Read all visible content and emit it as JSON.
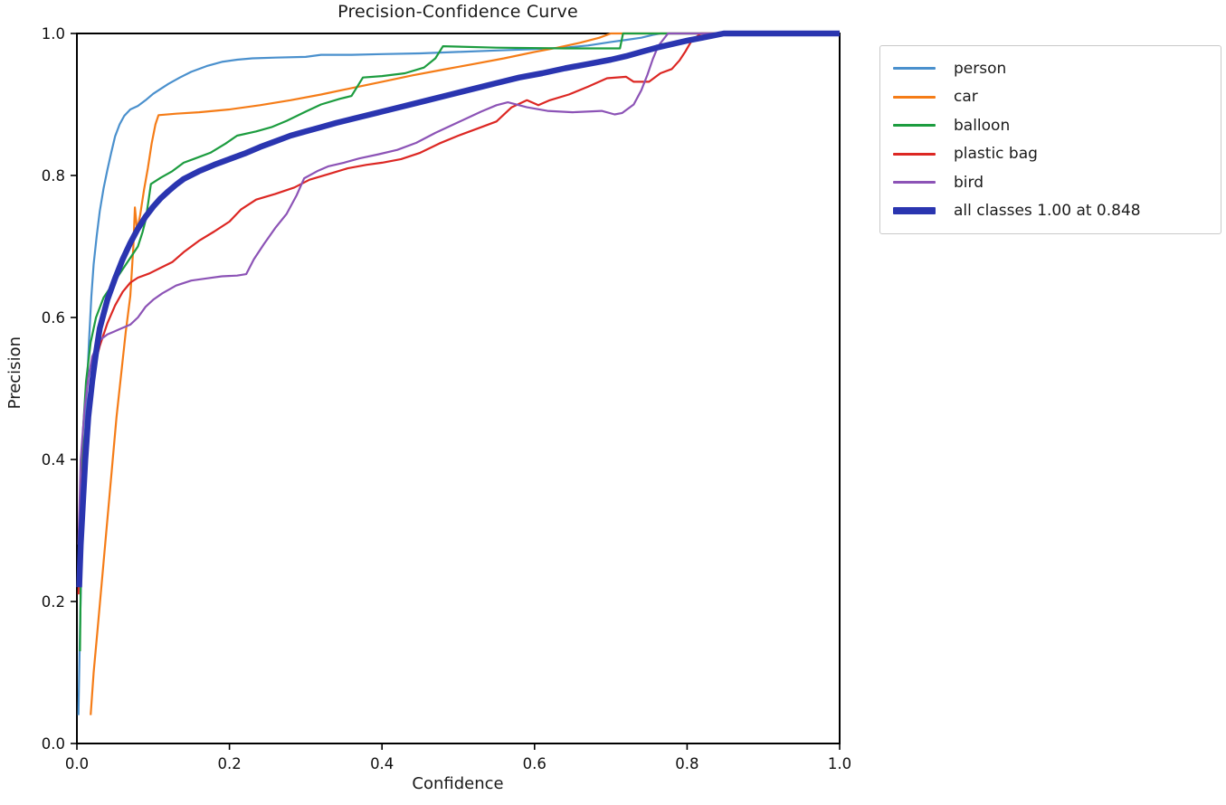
{
  "chart_data": {
    "type": "line",
    "title": "Precision-Confidence Curve",
    "xlabel": "Confidence",
    "ylabel": "Precision",
    "xlim": [
      0.0,
      1.0
    ],
    "ylim": [
      0.0,
      1.0
    ],
    "xticks": [
      "0.0",
      "0.2",
      "0.4",
      "0.6",
      "0.8",
      "1.0"
    ],
    "yticks": [
      "0.0",
      "0.2",
      "0.4",
      "0.6",
      "0.8",
      "1.0"
    ],
    "grid": false,
    "legend_position": "outside upper right",
    "axis_color": "#000000",
    "tick_label_color": "#111111",
    "series": [
      {
        "name": "person",
        "color": "#4a90cd",
        "width": 2.2,
        "points": [
          [
            0.002,
            0.04
          ],
          [
            0.004,
            0.16
          ],
          [
            0.006,
            0.26
          ],
          [
            0.008,
            0.34
          ],
          [
            0.01,
            0.42
          ],
          [
            0.013,
            0.5
          ],
          [
            0.016,
            0.57
          ],
          [
            0.019,
            0.63
          ],
          [
            0.022,
            0.675
          ],
          [
            0.026,
            0.715
          ],
          [
            0.03,
            0.75
          ],
          [
            0.035,
            0.782
          ],
          [
            0.04,
            0.808
          ],
          [
            0.045,
            0.832
          ],
          [
            0.05,
            0.855
          ],
          [
            0.056,
            0.872
          ],
          [
            0.062,
            0.884
          ],
          [
            0.07,
            0.893
          ],
          [
            0.08,
            0.898
          ],
          [
            0.09,
            0.906
          ],
          [
            0.1,
            0.915
          ],
          [
            0.11,
            0.922
          ],
          [
            0.12,
            0.929
          ],
          [
            0.135,
            0.938
          ],
          [
            0.15,
            0.946
          ],
          [
            0.17,
            0.954
          ],
          [
            0.19,
            0.96
          ],
          [
            0.21,
            0.963
          ],
          [
            0.23,
            0.965
          ],
          [
            0.26,
            0.966
          ],
          [
            0.3,
            0.967
          ],
          [
            0.32,
            0.97
          ],
          [
            0.36,
            0.97
          ],
          [
            0.4,
            0.971
          ],
          [
            0.45,
            0.972
          ],
          [
            0.5,
            0.974
          ],
          [
            0.55,
            0.976
          ],
          [
            0.6,
            0.978
          ],
          [
            0.64,
            0.98
          ],
          [
            0.67,
            0.983
          ],
          [
            0.7,
            0.988
          ],
          [
            0.72,
            0.991
          ],
          [
            0.74,
            0.994
          ],
          [
            0.755,
            0.998
          ],
          [
            0.765,
            1.0
          ],
          [
            1.0,
            1.0
          ]
        ]
      },
      {
        "name": "car",
        "color": "#f57c17",
        "width": 2.2,
        "points": [
          [
            0.018,
            0.04
          ],
          [
            0.022,
            0.1
          ],
          [
            0.027,
            0.16
          ],
          [
            0.032,
            0.22
          ],
          [
            0.037,
            0.28
          ],
          [
            0.042,
            0.34
          ],
          [
            0.047,
            0.4
          ],
          [
            0.052,
            0.46
          ],
          [
            0.058,
            0.52
          ],
          [
            0.064,
            0.58
          ],
          [
            0.07,
            0.63
          ],
          [
            0.074,
            0.7
          ],
          [
            0.076,
            0.755
          ],
          [
            0.079,
            0.722
          ],
          [
            0.083,
            0.745
          ],
          [
            0.088,
            0.78
          ],
          [
            0.093,
            0.81
          ],
          [
            0.098,
            0.845
          ],
          [
            0.103,
            0.872
          ],
          [
            0.107,
            0.885
          ],
          [
            0.13,
            0.887
          ],
          [
            0.16,
            0.889
          ],
          [
            0.2,
            0.893
          ],
          [
            0.24,
            0.899
          ],
          [
            0.28,
            0.906
          ],
          [
            0.32,
            0.914
          ],
          [
            0.36,
            0.923
          ],
          [
            0.4,
            0.932
          ],
          [
            0.44,
            0.941
          ],
          [
            0.48,
            0.949
          ],
          [
            0.52,
            0.957
          ],
          [
            0.56,
            0.965
          ],
          [
            0.6,
            0.974
          ],
          [
            0.63,
            0.98
          ],
          [
            0.66,
            0.987
          ],
          [
            0.685,
            0.994
          ],
          [
            0.7,
            1.0
          ],
          [
            1.0,
            1.0
          ]
        ]
      },
      {
        "name": "balloon",
        "color": "#1c9c3f",
        "width": 2.2,
        "points": [
          [
            0.004,
            0.13
          ],
          [
            0.006,
            0.33
          ],
          [
            0.008,
            0.44
          ],
          [
            0.012,
            0.51
          ],
          [
            0.018,
            0.565
          ],
          [
            0.025,
            0.6
          ],
          [
            0.035,
            0.628
          ],
          [
            0.05,
            0.652
          ],
          [
            0.06,
            0.668
          ],
          [
            0.07,
            0.684
          ],
          [
            0.08,
            0.7
          ],
          [
            0.086,
            0.72
          ],
          [
            0.09,
            0.737
          ],
          [
            0.094,
            0.765
          ],
          [
            0.097,
            0.788
          ],
          [
            0.11,
            0.797
          ],
          [
            0.125,
            0.806
          ],
          [
            0.14,
            0.818
          ],
          [
            0.155,
            0.824
          ],
          [
            0.175,
            0.832
          ],
          [
            0.195,
            0.845
          ],
          [
            0.21,
            0.856
          ],
          [
            0.235,
            0.862
          ],
          [
            0.255,
            0.868
          ],
          [
            0.275,
            0.877
          ],
          [
            0.3,
            0.89
          ],
          [
            0.32,
            0.9
          ],
          [
            0.345,
            0.908
          ],
          [
            0.36,
            0.912
          ],
          [
            0.375,
            0.938
          ],
          [
            0.4,
            0.94
          ],
          [
            0.43,
            0.944
          ],
          [
            0.455,
            0.952
          ],
          [
            0.47,
            0.965
          ],
          [
            0.48,
            0.982
          ],
          [
            0.55,
            0.98
          ],
          [
            0.64,
            0.979
          ],
          [
            0.712,
            0.979
          ],
          [
            0.716,
            1.0
          ],
          [
            1.0,
            1.0
          ]
        ]
      },
      {
        "name": "plastic bag",
        "color": "#dc2723",
        "width": 2.2,
        "points": [
          [
            0.002,
            0.21
          ],
          [
            0.004,
            0.3
          ],
          [
            0.006,
            0.36
          ],
          [
            0.009,
            0.41
          ],
          [
            0.013,
            0.455
          ],
          [
            0.018,
            0.5
          ],
          [
            0.024,
            0.535
          ],
          [
            0.03,
            0.56
          ],
          [
            0.04,
            0.592
          ],
          [
            0.05,
            0.617
          ],
          [
            0.06,
            0.636
          ],
          [
            0.07,
            0.649
          ],
          [
            0.08,
            0.656
          ],
          [
            0.095,
            0.662
          ],
          [
            0.11,
            0.67
          ],
          [
            0.125,
            0.678
          ],
          [
            0.14,
            0.692
          ],
          [
            0.16,
            0.708
          ],
          [
            0.18,
            0.721
          ],
          [
            0.2,
            0.735
          ],
          [
            0.215,
            0.752
          ],
          [
            0.235,
            0.766
          ],
          [
            0.26,
            0.774
          ],
          [
            0.285,
            0.783
          ],
          [
            0.305,
            0.794
          ],
          [
            0.33,
            0.802
          ],
          [
            0.355,
            0.81
          ],
          [
            0.38,
            0.815
          ],
          [
            0.4,
            0.818
          ],
          [
            0.425,
            0.823
          ],
          [
            0.45,
            0.832
          ],
          [
            0.475,
            0.845
          ],
          [
            0.5,
            0.856
          ],
          [
            0.525,
            0.866
          ],
          [
            0.55,
            0.876
          ],
          [
            0.57,
            0.896
          ],
          [
            0.59,
            0.906
          ],
          [
            0.605,
            0.899
          ],
          [
            0.62,
            0.906
          ],
          [
            0.645,
            0.914
          ],
          [
            0.67,
            0.925
          ],
          [
            0.695,
            0.937
          ],
          [
            0.72,
            0.939
          ],
          [
            0.73,
            0.932
          ],
          [
            0.75,
            0.932
          ],
          [
            0.765,
            0.944
          ],
          [
            0.78,
            0.95
          ],
          [
            0.79,
            0.962
          ],
          [
            0.798,
            0.975
          ],
          [
            0.806,
            0.99
          ],
          [
            0.818,
            1.0
          ],
          [
            1.0,
            1.0
          ]
        ]
      },
      {
        "name": "bird",
        "color": "#8c53b6",
        "width": 2.2,
        "points": [
          [
            0.002,
            0.28
          ],
          [
            0.005,
            0.4
          ],
          [
            0.01,
            0.47
          ],
          [
            0.015,
            0.515
          ],
          [
            0.02,
            0.545
          ],
          [
            0.03,
            0.568
          ],
          [
            0.04,
            0.576
          ],
          [
            0.055,
            0.583
          ],
          [
            0.07,
            0.59
          ],
          [
            0.08,
            0.6
          ],
          [
            0.09,
            0.615
          ],
          [
            0.1,
            0.625
          ],
          [
            0.112,
            0.634
          ],
          [
            0.13,
            0.645
          ],
          [
            0.15,
            0.652
          ],
          [
            0.17,
            0.655
          ],
          [
            0.19,
            0.658
          ],
          [
            0.21,
            0.659
          ],
          [
            0.222,
            0.661
          ],
          [
            0.232,
            0.682
          ],
          [
            0.245,
            0.703
          ],
          [
            0.26,
            0.726
          ],
          [
            0.275,
            0.746
          ],
          [
            0.288,
            0.772
          ],
          [
            0.298,
            0.796
          ],
          [
            0.315,
            0.806
          ],
          [
            0.33,
            0.813
          ],
          [
            0.35,
            0.818
          ],
          [
            0.37,
            0.824
          ],
          [
            0.396,
            0.83
          ],
          [
            0.42,
            0.836
          ],
          [
            0.445,
            0.846
          ],
          [
            0.47,
            0.86
          ],
          [
            0.5,
            0.875
          ],
          [
            0.53,
            0.89
          ],
          [
            0.55,
            0.899
          ],
          [
            0.565,
            0.903
          ],
          [
            0.59,
            0.896
          ],
          [
            0.617,
            0.891
          ],
          [
            0.65,
            0.889
          ],
          [
            0.688,
            0.891
          ],
          [
            0.705,
            0.886
          ],
          [
            0.715,
            0.888
          ],
          [
            0.73,
            0.9
          ],
          [
            0.74,
            0.92
          ],
          [
            0.748,
            0.942
          ],
          [
            0.755,
            0.964
          ],
          [
            0.762,
            0.982
          ],
          [
            0.775,
            1.0
          ],
          [
            1.0,
            1.0
          ]
        ]
      },
      {
        "name": "all classes 1.00 at 0.848",
        "color": "#2a35b0",
        "width": 6.5,
        "points": [
          [
            0.003,
            0.22
          ],
          [
            0.005,
            0.28
          ],
          [
            0.008,
            0.34
          ],
          [
            0.011,
            0.4
          ],
          [
            0.015,
            0.46
          ],
          [
            0.02,
            0.51
          ],
          [
            0.025,
            0.55
          ],
          [
            0.03,
            0.585
          ],
          [
            0.04,
            0.625
          ],
          [
            0.05,
            0.655
          ],
          [
            0.06,
            0.682
          ],
          [
            0.07,
            0.705
          ],
          [
            0.08,
            0.725
          ],
          [
            0.09,
            0.742
          ],
          [
            0.1,
            0.756
          ],
          [
            0.11,
            0.768
          ],
          [
            0.12,
            0.778
          ],
          [
            0.13,
            0.787
          ],
          [
            0.14,
            0.795
          ],
          [
            0.16,
            0.806
          ],
          [
            0.18,
            0.815
          ],
          [
            0.2,
            0.823
          ],
          [
            0.22,
            0.831
          ],
          [
            0.24,
            0.84
          ],
          [
            0.26,
            0.848
          ],
          [
            0.28,
            0.856
          ],
          [
            0.3,
            0.862
          ],
          [
            0.32,
            0.868
          ],
          [
            0.34,
            0.874
          ],
          [
            0.37,
            0.882
          ],
          [
            0.4,
            0.89
          ],
          [
            0.43,
            0.898
          ],
          [
            0.46,
            0.906
          ],
          [
            0.49,
            0.914
          ],
          [
            0.52,
            0.922
          ],
          [
            0.55,
            0.93
          ],
          [
            0.58,
            0.938
          ],
          [
            0.61,
            0.944
          ],
          [
            0.64,
            0.951
          ],
          [
            0.67,
            0.957
          ],
          [
            0.7,
            0.963
          ],
          [
            0.72,
            0.968
          ],
          [
            0.74,
            0.974
          ],
          [
            0.76,
            0.98
          ],
          [
            0.78,
            0.985
          ],
          [
            0.8,
            0.99
          ],
          [
            0.82,
            0.994
          ],
          [
            0.848,
            1.0
          ],
          [
            1.0,
            1.0
          ]
        ]
      }
    ]
  }
}
